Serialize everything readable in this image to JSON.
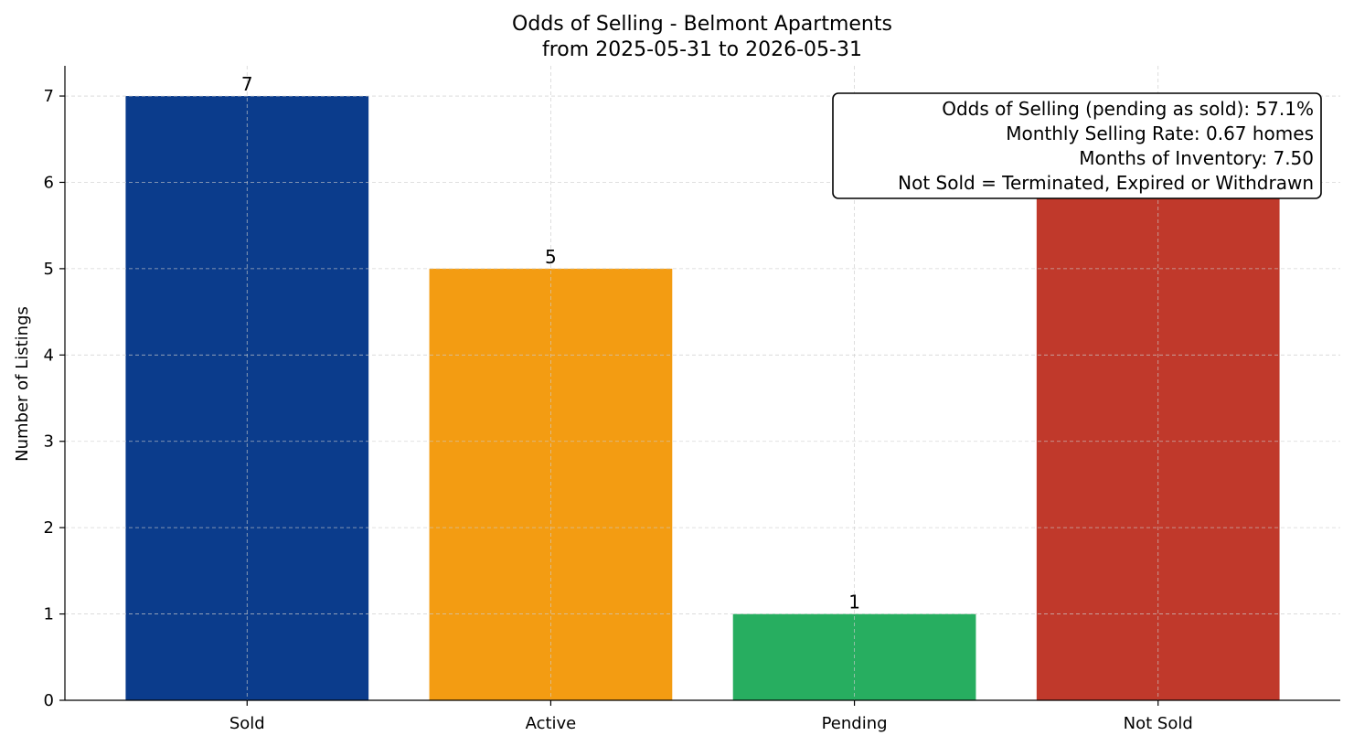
{
  "chart_data": {
    "type": "bar",
    "title": "Odds of Selling - Belmont Apartments",
    "subtitle": "from 2025-05-31 to 2026-05-31",
    "xlabel": "",
    "ylabel": "Number of Listings",
    "categories": [
      "Sold",
      "Active",
      "Pending",
      "Not Sold"
    ],
    "values": [
      7,
      5,
      1,
      6
    ],
    "colors": [
      "#0b3c8c",
      "#f39c12",
      "#27ae60",
      "#c0392b"
    ],
    "ylim": [
      0,
      7.35
    ],
    "yticks": [
      0,
      1,
      2,
      3,
      4,
      5,
      6,
      7
    ],
    "grid": true,
    "data_labels": [
      "7",
      "5",
      "1",
      ""
    ],
    "annotation": {
      "placement": "top-right",
      "lines": [
        "Odds of Selling (pending as sold): 57.1%",
        "Monthly Selling Rate: 0.67 homes",
        "Months of Inventory: 7.50",
        "Not Sold = Terminated, Expired or Withdrawn"
      ]
    }
  }
}
